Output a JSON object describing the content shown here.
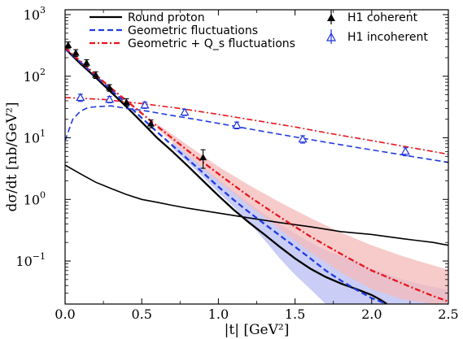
{
  "chart_data": {
    "type": "line",
    "xlabel": "|t| [GeV²]",
    "ylabel": "dσ/dt [nb/GeV²]",
    "xlim": [
      0.0,
      2.5
    ],
    "ylim": [
      0.02,
      1200
    ],
    "yscale": "log",
    "x_ticks": [
      "0.0",
      "0.5",
      "1.0",
      "1.5",
      "2.0",
      "2.5"
    ],
    "y_ticks": [
      {
        "base": "10",
        "exp": "−1"
      },
      {
        "base": "10",
        "exp": "0"
      },
      {
        "base": "10",
        "exp": "1"
      },
      {
        "base": "10",
        "exp": "2"
      },
      {
        "base": "10",
        "exp": "3"
      }
    ],
    "legend_left": [
      "Round proton",
      "Geometric fluctuations",
      "Geometric + Q_s fluctuations"
    ],
    "legend_right": [
      "H1 coherent",
      "H1 incoherent"
    ],
    "legend_placement": "top",
    "colors": {
      "round_proton": "#000000",
      "geometric": "#1f3be0",
      "geometric_qs": "#e8141c",
      "band_geometric": "#b8bcf2",
      "band_geometric_qs": "#f6b9b9",
      "h1": "#000000",
      "h1_incoherent": "#2233dd"
    },
    "series": [
      {
        "name": "Round proton",
        "kind": "coherent",
        "x": [
          0.0,
          0.1,
          0.2,
          0.3,
          0.4,
          0.5,
          0.6,
          0.7,
          0.8,
          0.9,
          1.0,
          1.1,
          1.2,
          1.3,
          1.4,
          1.5,
          1.6,
          1.7,
          1.8,
          1.9,
          2.0,
          2.05,
          2.1
        ],
        "y": [
          280,
          160,
          95,
          55,
          32,
          18,
          10,
          6,
          3.5,
          2.0,
          1.15,
          0.68,
          0.42,
          0.27,
          0.17,
          0.11,
          0.075,
          0.055,
          0.043,
          0.035,
          0.028,
          0.024,
          0.02
        ]
      },
      {
        "name": "Round proton",
        "kind": "incoherent",
        "x": [
          0.0,
          0.1,
          0.2,
          0.3,
          0.4,
          0.5,
          0.6,
          0.7,
          0.8,
          1.0,
          1.2,
          1.4,
          1.6,
          1.8,
          2.0,
          2.2,
          2.4,
          2.5
        ],
        "y": [
          3.6,
          2.6,
          1.9,
          1.5,
          1.2,
          1.0,
          0.9,
          0.8,
          0.72,
          0.6,
          0.5,
          0.42,
          0.36,
          0.3,
          0.27,
          0.23,
          0.2,
          0.18
        ]
      },
      {
        "name": "Geometric fluctuations",
        "kind": "coherent",
        "x": [
          0.0,
          0.1,
          0.2,
          0.3,
          0.4,
          0.5,
          0.6,
          0.7,
          0.8,
          0.9,
          1.0,
          1.1,
          1.2,
          1.3,
          1.4,
          1.5,
          1.6,
          1.7,
          1.8,
          1.9,
          2.0,
          2.1
        ],
        "y": [
          280,
          170,
          100,
          60,
          36,
          21,
          12.5,
          7.5,
          4.5,
          2.7,
          1.6,
          0.98,
          0.62,
          0.4,
          0.26,
          0.17,
          0.11,
          0.07,
          0.048,
          0.034,
          0.025,
          0.019
        ]
      },
      {
        "name": "Geometric fluctuations",
        "kind": "incoherent",
        "x": [
          0.0,
          0.05,
          0.1,
          0.15,
          0.2,
          0.3,
          0.4,
          0.5,
          0.7,
          0.9,
          1.1,
          1.3,
          1.5,
          1.7,
          1.9,
          2.1,
          2.3,
          2.5
        ],
        "y": [
          9,
          20,
          27,
          31,
          32,
          33,
          30,
          28,
          23,
          19,
          15.5,
          12.6,
          10.3,
          8.5,
          7.0,
          5.8,
          4.8,
          4.0
        ]
      },
      {
        "name": "Geometric + Q_s fluctuations",
        "kind": "coherent",
        "x": [
          0.0,
          0.1,
          0.2,
          0.3,
          0.4,
          0.5,
          0.6,
          0.7,
          0.8,
          0.9,
          1.0,
          1.1,
          1.2,
          1.3,
          1.4,
          1.5,
          1.6,
          1.7,
          1.8,
          1.9,
          2.0,
          2.1,
          2.2,
          2.3,
          2.4,
          2.5
        ],
        "y": [
          290,
          175,
          105,
          64,
          40,
          25,
          15.5,
          9.8,
          6.2,
          4.0,
          2.6,
          1.7,
          1.12,
          0.76,
          0.52,
          0.36,
          0.25,
          0.18,
          0.13,
          0.095,
          0.07,
          0.055,
          0.043,
          0.034,
          0.027,
          0.022
        ]
      },
      {
        "name": "Geometric + Q_s fluctuations",
        "kind": "incoherent",
        "x": [
          0.0,
          0.25,
          0.5,
          0.75,
          1.0,
          1.25,
          1.5,
          1.75,
          2.0,
          2.25,
          2.5
        ],
        "y": [
          45,
          42,
          36,
          30,
          24,
          19,
          15,
          11.5,
          9,
          7,
          5.4
        ]
      },
      {
        "name": "H1 coherent",
        "kind": "data",
        "x": [
          0.02,
          0.07,
          0.14,
          0.2,
          0.29,
          0.4,
          0.56,
          0.9
        ],
        "y": [
          320,
          240,
          165,
          105,
          65,
          38,
          17,
          4.8
        ],
        "yerr": [
          40,
          30,
          20,
          13,
          8,
          5,
          2.5,
          1.6
        ]
      },
      {
        "name": "H1 incoherent",
        "kind": "data",
        "x": [
          0.1,
          0.29,
          0.52,
          0.78,
          1.12,
          1.55,
          2.22
        ],
        "y": [
          45,
          42,
          34,
          26,
          16,
          9.5,
          6.0
        ],
        "yerr": [
          6,
          5,
          4,
          3,
          2,
          1.3,
          0.9
        ]
      }
    ],
    "bands": [
      {
        "name": "Geometric fluctuations",
        "x": [
          0.7,
          0.8,
          0.9,
          1.0,
          1.1,
          1.2,
          1.3,
          1.4,
          1.5,
          1.6,
          1.7,
          1.8,
          1.9,
          2.0,
          2.1,
          2.2,
          2.3,
          2.5
        ],
        "lo": [
          6.8,
          4.0,
          2.3,
          1.3,
          0.75,
          0.42,
          0.22,
          0.11,
          0.06,
          0.035,
          0.02,
          0.02,
          0.02,
          0.02,
          0.02,
          0.02,
          0.02,
          0.02
        ],
        "hi": [
          8.5,
          5.3,
          3.3,
          2.1,
          1.35,
          0.88,
          0.58,
          0.4,
          0.28,
          0.2,
          0.15,
          0.12,
          0.095,
          0.075,
          0.062,
          0.05,
          0.043,
          0.034
        ]
      },
      {
        "name": "Geometric + Q_s fluctuations",
        "x": [
          0.6,
          0.8,
          1.0,
          1.2,
          1.4,
          1.6,
          1.8,
          2.0,
          2.2,
          2.4,
          2.5
        ],
        "lo": [
          14,
          5.2,
          2.0,
          0.8,
          0.33,
          0.14,
          0.065,
          0.035,
          0.024,
          0.02,
          0.02
        ],
        "hi": [
          17,
          7.6,
          3.4,
          1.7,
          0.9,
          0.5,
          0.29,
          0.18,
          0.12,
          0.085,
          0.072
        ]
      }
    ]
  }
}
